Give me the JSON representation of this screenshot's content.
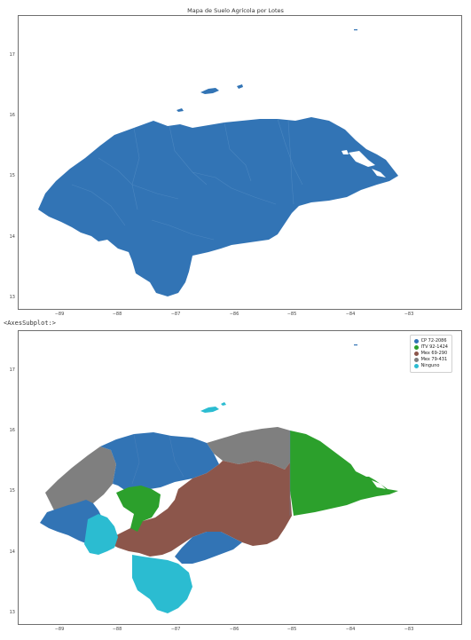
{
  "map1": {
    "title": "Mapa de Suelo Agrícola por Lotes",
    "yticks": [
      "17",
      "16",
      "15",
      "14",
      "13"
    ],
    "xticks": [
      "−89",
      "−88",
      "−87",
      "−86",
      "−85",
      "−84",
      "−83"
    ],
    "fill": "#3274b5"
  },
  "axes_repr": "<AxesSubplot:>",
  "map2": {
    "yticks": [
      "17",
      "16",
      "15",
      "14",
      "13"
    ],
    "xticks": [
      "−89",
      "−88",
      "−87",
      "−86",
      "−85",
      "−84",
      "−83"
    ],
    "legend": [
      {
        "label": "CP 72-2086",
        "color": "#3274b5"
      },
      {
        "label": "ITV 92-1424",
        "color": "#2ca02c"
      },
      {
        "label": "Mex 69-290",
        "color": "#8c564b"
      },
      {
        "label": "Mex 79-431",
        "color": "#7f7f7f"
      },
      {
        "label": "Ninguno",
        "color": "#2bbcd1"
      }
    ]
  }
}
